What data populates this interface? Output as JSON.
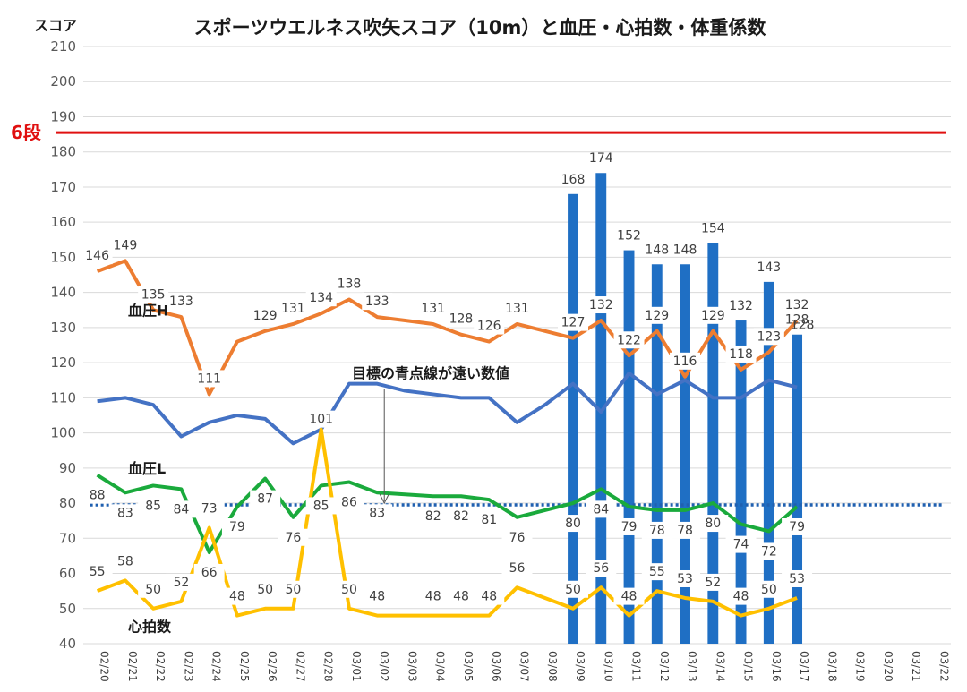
{
  "chart_data": {
    "type": "bar+line",
    "title": "スポーツウエルネス吹矢スコア（10m）と血圧・心拍数・体重係数",
    "ylabel": "スコア",
    "ylim": [
      40,
      210
    ],
    "yticks": [
      40,
      50,
      60,
      70,
      80,
      90,
      100,
      110,
      120,
      130,
      140,
      150,
      160,
      170,
      180,
      190,
      200,
      210
    ],
    "grid": true,
    "categories": [
      "02/20",
      "02/21",
      "02/22",
      "02/23",
      "02/24",
      "02/25",
      "02/26",
      "02/27",
      "02/28",
      "03/01",
      "03/02",
      "03/03",
      "03/04",
      "03/05",
      "03/06",
      "03/07",
      "03/08",
      "03/09",
      "03/10",
      "03/11",
      "03/12",
      "03/13",
      "03/14",
      "03/15",
      "03/16",
      "03/17",
      "03/18",
      "03/19",
      "03/20",
      "03/21",
      "03/22"
    ],
    "bars": {
      "color": "#1f6fc4",
      "values": [
        null,
        null,
        null,
        null,
        null,
        null,
        null,
        null,
        null,
        null,
        null,
        null,
        null,
        null,
        null,
        null,
        null,
        168,
        174,
        152,
        148,
        148,
        154,
        132,
        143,
        128,
        null,
        null,
        null,
        null,
        null
      ]
    },
    "series": [
      {
        "name": "血圧H",
        "color": "#ed7d31",
        "values": [
          146,
          149,
          135,
          133,
          111,
          126,
          129,
          131,
          134,
          138,
          133,
          132,
          131,
          128,
          126,
          131,
          129,
          127,
          132,
          122,
          129,
          116,
          129,
          118,
          123,
          132,
          null,
          null,
          null,
          null,
          null
        ],
        "labels": [
          "146",
          "149",
          "135",
          "133",
          "111",
          "",
          "129",
          "131",
          "134",
          "138",
          "133",
          "",
          "131",
          "128",
          "126",
          "131",
          "",
          "127",
          "132",
          "122",
          "129",
          "116",
          "129",
          "118",
          "123",
          "132",
          "",
          "",
          "",
          "",
          ""
        ]
      },
      {
        "name": "",
        "color": "#4472c4",
        "values": [
          109,
          110,
          108,
          99,
          103,
          105,
          104,
          97,
          101,
          114,
          114,
          112,
          111,
          110,
          110,
          103,
          108,
          114,
          106,
          117,
          111,
          115,
          110,
          110,
          115,
          113,
          null,
          null,
          null,
          null,
          null
        ],
        "labels": [
          "",
          "",
          "",
          "",
          "",
          "",
          "",
          "",
          "101",
          "",
          "",
          "",
          "",
          "",
          "",
          "",
          "",
          "",
          "",
          "",
          "",
          "",
          "",
          "",
          "",
          "",
          "",
          "",
          "",
          "",
          ""
        ]
      },
      {
        "name": "血圧L",
        "color": "#1aaa3c",
        "values": [
          88,
          83,
          85,
          84,
          66,
          79,
          87,
          76,
          85,
          86,
          83,
          82.5,
          82,
          82,
          81,
          76,
          78,
          80,
          84,
          79,
          78,
          78,
          80,
          74,
          72,
          79,
          null,
          null,
          null,
          null,
          null
        ],
        "labels": [
          "88",
          "83",
          "85",
          "84",
          "66",
          "79",
          "87",
          "76",
          "85",
          "86",
          "83",
          "",
          "82",
          "82",
          "81",
          "76",
          "",
          "80",
          "84",
          "79",
          "78",
          "78",
          "80",
          "74",
          "72",
          "79",
          "",
          "",
          "",
          "",
          ""
        ]
      },
      {
        "name": "心拍数",
        "color": "#ffc000",
        "values": [
          55,
          58,
          50,
          52,
          73,
          48,
          50,
          50,
          101,
          50,
          48,
          48,
          48,
          48,
          48,
          56,
          53,
          50,
          56,
          48,
          55,
          53,
          52,
          48,
          50,
          53,
          null,
          null,
          null,
          null,
          null
        ],
        "labels": [
          "55",
          "58",
          "50",
          "52",
          "73",
          "48",
          "50",
          "50",
          "",
          "50",
          "48",
          "",
          "48",
          "48",
          "48",
          "56",
          "",
          "50",
          "56",
          "48",
          "55",
          "53",
          "52",
          "48",
          "50",
          "53",
          "",
          "",
          "",
          "",
          ""
        ]
      }
    ],
    "reference_lines": [
      {
        "label": "6段",
        "value": 185.5,
        "color": "#e01010",
        "style": "solid"
      },
      {
        "label": "",
        "value": 79.5,
        "color": "#2060b0",
        "style": "dotted"
      }
    ],
    "annotation": {
      "text": "目標の青点線が遠い数値",
      "x_category": "03/02",
      "y_from": 112.5,
      "y_to": 79.5
    },
    "extra_labels": [
      {
        "text": "128",
        "x_category": "03/17",
        "y": 128
      }
    ]
  }
}
